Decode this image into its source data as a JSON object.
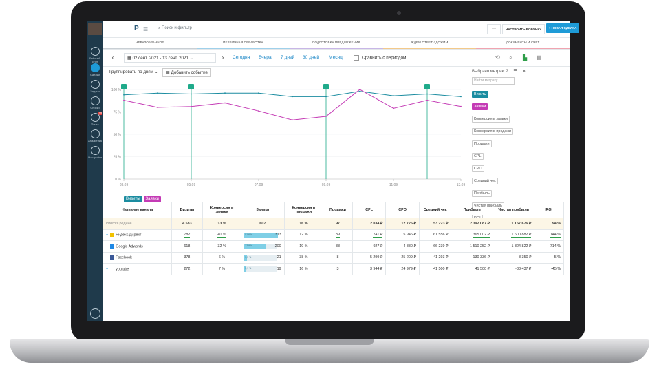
{
  "sidebar": {
    "items": [
      {
        "label": "Рабочий стол",
        "top": 38
      },
      {
        "label": "Сделки",
        "top": 62,
        "active": true
      },
      {
        "label": "Задачи",
        "top": 86
      },
      {
        "label": "Списки",
        "top": 110
      },
      {
        "label": "Почта",
        "top": 134,
        "badge": "99"
      },
      {
        "label": "Аналитика",
        "top": 158
      },
      {
        "label": "Настройки",
        "top": 182
      }
    ]
  },
  "topbar": {
    "logo": "P",
    "search_placeholder": "Поиск и фильтр",
    "dots": "···",
    "funnel_button": "НАСТРОИТЬ ВОРОНКУ",
    "deal_button": "+ НОВАЯ СДЕЛКА"
  },
  "stages": [
    {
      "label": "НЕРАЗОБРАННОЕ",
      "color": "#c9cfd4"
    },
    {
      "label": "ПЕРВИЧНАЯ ОБРАБОТКА",
      "color": "#9fd0ea"
    },
    {
      "label": "ПОДГОТОВКА ПРЕДЛОЖЕНИЯ",
      "color": "#c8b6e6"
    },
    {
      "label": "ЖДЁМ ОТВЕТ / ДОЖИМ",
      "color": "#f3c98a"
    },
    {
      "label": "ДОКУМЕНТЫ И СЧЁТ",
      "color": "#f0a4b0"
    }
  ],
  "filter": {
    "date_range": "02 сент. 2021 - 13 сент. 2021",
    "periods": [
      "Сегодня",
      "Вчера",
      "7 дней",
      "30 дней",
      "Месяц"
    ],
    "compare": "Сравнить с периодом"
  },
  "chart_controls": {
    "group_by": "Группировать по дням",
    "add_event": "Добавить событие"
  },
  "metrics_panel": {
    "title": "Выбрано метрик: 2",
    "search_placeholder": "Найти метрику...",
    "selected": [
      {
        "label": "Визиты",
        "color": "#1b8ca0"
      },
      {
        "label": "Заявки",
        "color": "#c43bb5"
      }
    ],
    "available": [
      "Конверсия в заявки",
      "Конверсия в продажи",
      "Продажи",
      "CPL",
      "CPO",
      "Средний чек",
      "Прибыль",
      "Чистая прибыль",
      "ROI"
    ]
  },
  "chart_data": {
    "type": "line",
    "x": [
      "03.09",
      "04.09",
      "05.09",
      "06.09",
      "07.09",
      "08.09",
      "09.09",
      "10.09",
      "11.09",
      "12.09",
      "13.09"
    ],
    "x_ticks": [
      "03.09",
      "05.09",
      "07.09",
      "09.09",
      "11.09",
      "13.09"
    ],
    "y_ticks": [
      "0 %",
      "25 %",
      "50 %",
      "75 %",
      "100 %"
    ],
    "ylim": [
      0,
      100
    ],
    "event_markers": [
      "03.09",
      "05.09",
      "09.09",
      "12.09"
    ],
    "series": [
      {
        "name": "Визиты",
        "color": "#1b8ca0",
        "values": [
          94,
          96,
          95,
          96,
          96,
          92,
          92,
          98,
          93,
          95,
          92
        ]
      },
      {
        "name": "Заявки",
        "color": "#c43bb5",
        "values": [
          88,
          80,
          81,
          85,
          76,
          66,
          70,
          100,
          79,
          88,
          81
        ]
      }
    ]
  },
  "table": {
    "headers": [
      "Название канала",
      "Визиты",
      "Конверсия в заявки",
      "Заявки",
      "Конверсия в продажи",
      "Продажи",
      "CPL",
      "CPO",
      "Средний чек",
      "Прибыль",
      "Чистая прибыль",
      "ROI"
    ],
    "total": [
      "Итого/Средние",
      "4 533",
      "13 %",
      "607",
      "16 %",
      "97",
      "2 034 ₽",
      "12 726 ₽",
      "53 223 ₽",
      "2 392 087 ₽",
      "1 157 676 ₽",
      "94 %"
    ],
    "rows": [
      {
        "name": "Яндекс.Директ",
        "icon_color": "#f2c200",
        "visits": "782",
        "conv1": "40 %",
        "leads": "313",
        "bar_pct": "51,6 %",
        "bar": 0.516,
        "conv2": "12 %",
        "sales": "39",
        "cpl": "741 ₽",
        "cpo": "5 946 ₽",
        "avg": "61 556 ₽",
        "profit": "365 002 ₽",
        "net": "1 600 882 ₽",
        "roi": "144 %"
      },
      {
        "name": "Google Adwords",
        "icon_color": "#1e88e5",
        "visits": "618",
        "conv1": "32 %",
        "leads": "200",
        "bar_pct": "32,9 %",
        "bar": 0.329,
        "conv2": "19 %",
        "sales": "38",
        "cpl": "927 ₽",
        "cpo": "4 880 ₽",
        "avg": "66 239 ₽",
        "profit": "1 510 252 ₽",
        "net": "1 324 822 ₽",
        "roi": "714 %"
      },
      {
        "name": "Facebook",
        "icon_color": "#3b5998",
        "visits": "378",
        "conv1": "6 %",
        "leads": "21",
        "bar_pct": "3,5 %",
        "bar": 0.035,
        "conv2": "38 %",
        "sales": "8",
        "cpl": "5 299 ₽",
        "cpo": "25 209 ₽",
        "avg": "41 293 ₽",
        "profit": "130 336 ₽",
        "net": "-8 350 ₽",
        "roi": "5 %"
      },
      {
        "name": "youtube",
        "icon_color": "#ffffff",
        "visits": "272",
        "conv1": "7 %",
        "leads": "19",
        "bar_pct": "3,1 %",
        "bar": 0.031,
        "conv2": "16 %",
        "sales": "3",
        "cpl": "3 944 ₽",
        "cpo": "24 979 ₽",
        "avg": "41 500 ₽",
        "profit": "41 500 ₽",
        "net": "-33 437 ₽",
        "roi": "-45 %"
      }
    ]
  }
}
